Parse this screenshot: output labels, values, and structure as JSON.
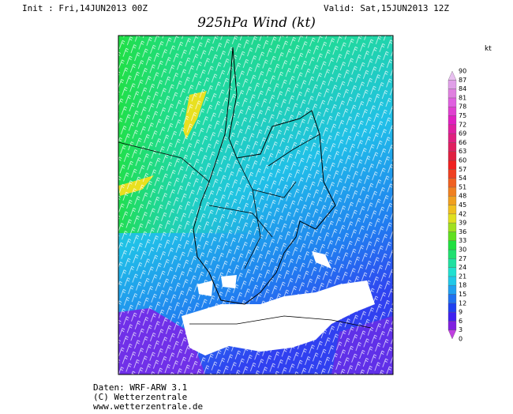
{
  "header": {
    "init": "Init : Fri,14JUN2013 00Z",
    "valid": "Valid: Sat,15JUN2013 12Z",
    "title": "925hPa Wind (kt)"
  },
  "colorbar": {
    "unit": "kt",
    "levels": [
      0,
      3,
      6,
      9,
      12,
      15,
      18,
      21,
      24,
      27,
      30,
      33,
      36,
      39,
      42,
      45,
      48,
      51,
      54,
      57,
      60,
      63,
      66,
      69,
      72,
      75,
      78,
      81,
      84,
      87,
      90
    ],
    "colors": [
      "#c040e0",
      "#8020e0",
      "#4020f0",
      "#2040f0",
      "#2070f0",
      "#20a0f0",
      "#20c8e8",
      "#20e0d0",
      "#20e0a0",
      "#20e070",
      "#20e040",
      "#60e020",
      "#a0e020",
      "#e0e020",
      "#f0c020",
      "#f0a020",
      "#f08020",
      "#f06020",
      "#f04020",
      "#f02020",
      "#e02040",
      "#e02060",
      "#e02080",
      "#e020a0",
      "#e020c0",
      "#e040d0",
      "#e060e0",
      "#e080e0",
      "#e0a0e8",
      "#e8c0f0"
    ]
  },
  "footer": {
    "lines": [
      "Daten: WRF-ARW 3.1",
      "(C) Wetterzentrale",
      "www.wetterzentrale.de"
    ]
  }
}
